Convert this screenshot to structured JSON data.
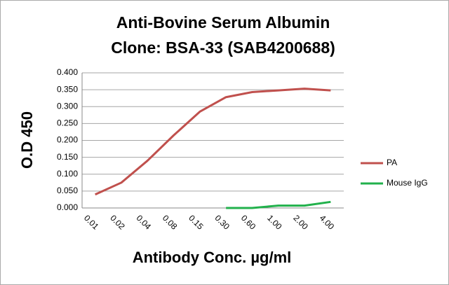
{
  "chart_data": {
    "type": "line",
    "title": [
      "Anti-Bovine Serum Albumin",
      "Clone: BSA-33  (SAB4200688)"
    ],
    "x_label": "Antibody Conc. µg/ml",
    "y_label": "O.D 450",
    "categories": [
      "0.01",
      "0.02",
      "0.04",
      "0.08",
      "0.15",
      "0.30",
      "0.60",
      "1.00",
      "2.00",
      "4.00"
    ],
    "series": [
      {
        "name": "PA",
        "color": "#c0504d",
        "values": [
          0.04,
          0.075,
          0.14,
          0.215,
          0.285,
          0.328,
          0.343,
          0.348,
          0.353,
          0.348
        ]
      },
      {
        "name": "Mouse IgG",
        "color": "#22b14c",
        "values": [
          null,
          null,
          null,
          null,
          null,
          0.0,
          0.0,
          0.007,
          0.007,
          0.018
        ]
      }
    ],
    "ylim": [
      0,
      0.4
    ],
    "yticks": [
      {
        "value": 0,
        "label": "0.000"
      },
      {
        "value": 0.05,
        "label": "0.050"
      },
      {
        "value": 0.1,
        "label": "0.100"
      },
      {
        "value": 0.15,
        "label": "0.150"
      },
      {
        "value": 0.2,
        "label": "0.200"
      },
      {
        "value": 0.25,
        "label": "0.250"
      },
      {
        "value": 0.3,
        "label": "0.300"
      },
      {
        "value": 0.35,
        "label": "0.350"
      },
      {
        "value": 0.4,
        "label": "0.400"
      }
    ],
    "grid": true,
    "legend": "right"
  }
}
